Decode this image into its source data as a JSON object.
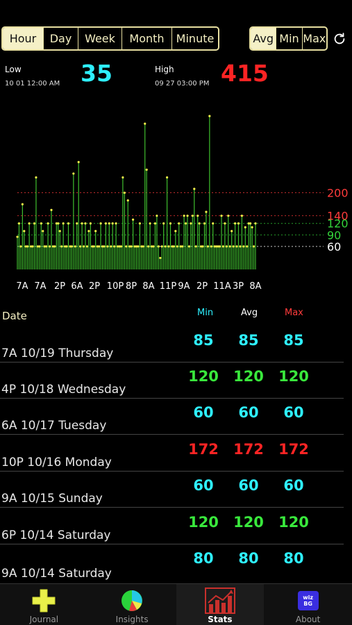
{
  "period_tabs": [
    {
      "label": "Hour",
      "active": true
    },
    {
      "label": "Day",
      "active": false
    },
    {
      "label": "Week",
      "active": false
    },
    {
      "label": "Month",
      "active": false
    },
    {
      "label": "Minute",
      "active": false
    }
  ],
  "stat_tabs": [
    {
      "label": "Avg",
      "active": true
    },
    {
      "label": "Min",
      "active": false
    },
    {
      "label": "Max",
      "active": false
    }
  ],
  "refresh_icon": "refresh-icon",
  "low": {
    "label": "Low",
    "date": "10 01 12:00 AM",
    "value": "35",
    "color": "#2ef0ff"
  },
  "high": {
    "label": "High",
    "date": "09 27 03:00 PM",
    "value": "415",
    "color": "#ff2424"
  },
  "chart_data": {
    "type": "bar",
    "ylim": [
      0,
      440
    ],
    "x_tick_labels": [
      "7A",
      "7A",
      "2P",
      "6A",
      "2P",
      "10P",
      "8P",
      "8A",
      "11P",
      "9A",
      "2P",
      "11A",
      "3P",
      "8A"
    ],
    "reference_lines": [
      {
        "value": 200,
        "label": "200",
        "color": "#ff3b3b"
      },
      {
        "value": 140,
        "label": "140",
        "color": "#ff3b3b"
      },
      {
        "value": 120,
        "label": "120",
        "color": "#34d43a"
      },
      {
        "value": 90,
        "label": "90",
        "color": "#34d43a"
      },
      {
        "value": 60,
        "label": "60",
        "color": "#ffffff"
      }
    ],
    "values": [
      85,
      120,
      60,
      170,
      100,
      60,
      60,
      120,
      60,
      60,
      120,
      240,
      60,
      60,
      120,
      100,
      60,
      60,
      120,
      60,
      155,
      60,
      60,
      120,
      120,
      100,
      60,
      120,
      60,
      60,
      120,
      60,
      60,
      250,
      60,
      120,
      280,
      60,
      120,
      60,
      120,
      60,
      100,
      120,
      60,
      60,
      100,
      60,
      60,
      120,
      60,
      60,
      120,
      60,
      120,
      60,
      120,
      60,
      120,
      60,
      60,
      60,
      240,
      200,
      60,
      180,
      60,
      60,
      130,
      60,
      60,
      60,
      120,
      60,
      60,
      380,
      260,
      60,
      120,
      60,
      60,
      120,
      140,
      60,
      30,
      60,
      120,
      60,
      240,
      60,
      120,
      60,
      60,
      100,
      60,
      120,
      60,
      60,
      140,
      120,
      140,
      60,
      120,
      140,
      210,
      60,
      140,
      120,
      60,
      60,
      120,
      150,
      60,
      400,
      60,
      120,
      60,
      60,
      60,
      60,
      140,
      60,
      120,
      60,
      140,
      60,
      100,
      60,
      120,
      60,
      120,
      60,
      140,
      60,
      110,
      60,
      120,
      120,
      110,
      60,
      120
    ]
  },
  "table": {
    "headers": {
      "date": "Date",
      "min": "Min",
      "avg": "Avg",
      "max": "Max"
    },
    "header_colors": {
      "min": "#2ef0ff",
      "avg": "#ffffff",
      "max": "#ff3b3b"
    },
    "rows": [
      {
        "date": "7A 10/19 Thursday",
        "min": "85",
        "avg": "85",
        "max": "85",
        "color": "#2ef0ff"
      },
      {
        "date": "4P 10/18 Wednesday",
        "min": "120",
        "avg": "120",
        "max": "120",
        "color": "#39e83c"
      },
      {
        "date": "6A 10/17 Tuesday",
        "min": "60",
        "avg": "60",
        "max": "60",
        "color": "#2ef0ff"
      },
      {
        "date": "10P 10/16 Monday",
        "min": "172",
        "avg": "172",
        "max": "172",
        "color": "#ff2424"
      },
      {
        "date": "9A 10/15 Sunday",
        "min": "60",
        "avg": "60",
        "max": "60",
        "color": "#2ef0ff"
      },
      {
        "date": "6P 10/14 Saturday",
        "min": "120",
        "avg": "120",
        "max": "120",
        "color": "#39e83c"
      },
      {
        "date": "9A 10/14 Saturday",
        "min": "80",
        "avg": "80",
        "max": "80",
        "color": "#2ef0ff"
      }
    ]
  },
  "tabbar": [
    {
      "label": "Journal",
      "icon": "plus-icon",
      "active": false
    },
    {
      "label": "Insights",
      "icon": "pie-chart-icon",
      "active": false
    },
    {
      "label": "Stats",
      "icon": "bar-chart-icon",
      "active": true
    },
    {
      "label": "About",
      "icon": "wiz-bg-logo-icon",
      "active": false,
      "icon_text": "wiz BG"
    }
  ]
}
